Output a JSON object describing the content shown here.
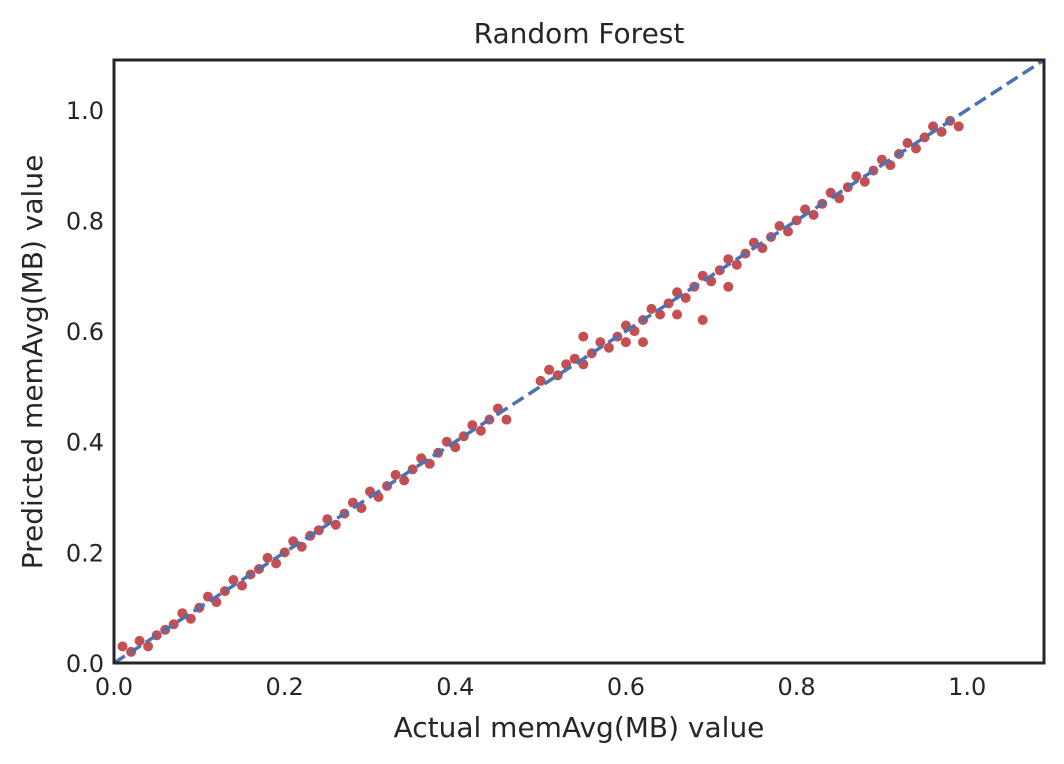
{
  "chart_data": {
    "type": "scatter",
    "title": "Random Forest",
    "xlabel": "Actual memAvg(MB) value",
    "ylabel": "Predicted memAvg(MB) value",
    "xlim": [
      0.0,
      1.09
    ],
    "ylim": [
      0.0,
      1.09
    ],
    "xticks": [
      "0.0",
      "0.2",
      "0.4",
      "0.6",
      "0.8",
      "1.0"
    ],
    "yticks": [
      "0.0",
      "0.2",
      "0.4",
      "0.6",
      "0.8",
      "1.0"
    ],
    "grid": false,
    "point_color": "#c44e52",
    "reference_line": {
      "style": "dashed",
      "color": "#4c72b0",
      "from": [
        0.0,
        0.0
      ],
      "to": [
        1.09,
        1.09
      ]
    },
    "series": [
      {
        "points": [
          [
            0.01,
            0.03
          ],
          [
            0.02,
            0.02
          ],
          [
            0.03,
            0.04
          ],
          [
            0.04,
            0.03
          ],
          [
            0.05,
            0.05
          ],
          [
            0.06,
            0.06
          ],
          [
            0.07,
            0.07
          ],
          [
            0.08,
            0.09
          ],
          [
            0.09,
            0.08
          ],
          [
            0.1,
            0.1
          ],
          [
            0.11,
            0.12
          ],
          [
            0.12,
            0.11
          ],
          [
            0.13,
            0.13
          ],
          [
            0.14,
            0.15
          ],
          [
            0.15,
            0.14
          ],
          [
            0.16,
            0.16
          ],
          [
            0.17,
            0.17
          ],
          [
            0.18,
            0.19
          ],
          [
            0.19,
            0.18
          ],
          [
            0.2,
            0.2
          ],
          [
            0.21,
            0.22
          ],
          [
            0.22,
            0.21
          ],
          [
            0.23,
            0.23
          ],
          [
            0.24,
            0.24
          ],
          [
            0.25,
            0.26
          ],
          [
            0.26,
            0.25
          ],
          [
            0.27,
            0.27
          ],
          [
            0.28,
            0.29
          ],
          [
            0.29,
            0.28
          ],
          [
            0.3,
            0.31
          ],
          [
            0.31,
            0.3
          ],
          [
            0.32,
            0.32
          ],
          [
            0.33,
            0.34
          ],
          [
            0.34,
            0.33
          ],
          [
            0.35,
            0.35
          ],
          [
            0.36,
            0.37
          ],
          [
            0.37,
            0.36
          ],
          [
            0.38,
            0.38
          ],
          [
            0.39,
            0.4
          ],
          [
            0.4,
            0.39
          ],
          [
            0.41,
            0.41
          ],
          [
            0.42,
            0.43
          ],
          [
            0.43,
            0.42
          ],
          [
            0.44,
            0.44
          ],
          [
            0.45,
            0.46
          ],
          [
            0.46,
            0.44
          ],
          [
            0.5,
            0.51
          ],
          [
            0.51,
            0.53
          ],
          [
            0.52,
            0.52
          ],
          [
            0.53,
            0.54
          ],
          [
            0.54,
            0.55
          ],
          [
            0.55,
            0.54
          ],
          [
            0.56,
            0.56
          ],
          [
            0.57,
            0.58
          ],
          [
            0.58,
            0.57
          ],
          [
            0.59,
            0.59
          ],
          [
            0.6,
            0.61
          ],
          [
            0.61,
            0.6
          ],
          [
            0.62,
            0.62
          ],
          [
            0.63,
            0.64
          ],
          [
            0.64,
            0.63
          ],
          [
            0.65,
            0.65
          ],
          [
            0.66,
            0.67
          ],
          [
            0.67,
            0.66
          ],
          [
            0.68,
            0.68
          ],
          [
            0.69,
            0.7
          ],
          [
            0.7,
            0.69
          ],
          [
            0.71,
            0.71
          ],
          [
            0.72,
            0.73
          ],
          [
            0.73,
            0.72
          ],
          [
            0.74,
            0.74
          ],
          [
            0.75,
            0.76
          ],
          [
            0.76,
            0.75
          ],
          [
            0.77,
            0.77
          ],
          [
            0.78,
            0.79
          ],
          [
            0.79,
            0.78
          ],
          [
            0.8,
            0.8
          ],
          [
            0.81,
            0.82
          ],
          [
            0.82,
            0.81
          ],
          [
            0.83,
            0.83
          ],
          [
            0.84,
            0.85
          ],
          [
            0.85,
            0.84
          ],
          [
            0.86,
            0.86
          ],
          [
            0.87,
            0.88
          ],
          [
            0.88,
            0.87
          ],
          [
            0.89,
            0.89
          ],
          [
            0.9,
            0.91
          ],
          [
            0.91,
            0.9
          ],
          [
            0.92,
            0.92
          ],
          [
            0.93,
            0.94
          ],
          [
            0.94,
            0.93
          ],
          [
            0.95,
            0.95
          ],
          [
            0.96,
            0.97
          ],
          [
            0.97,
            0.96
          ],
          [
            0.98,
            0.98
          ],
          [
            0.99,
            0.97
          ],
          [
            0.55,
            0.59
          ],
          [
            0.6,
            0.58
          ],
          [
            0.62,
            0.58
          ],
          [
            0.66,
            0.63
          ],
          [
            0.69,
            0.62
          ],
          [
            0.72,
            0.68
          ]
        ]
      }
    ]
  }
}
